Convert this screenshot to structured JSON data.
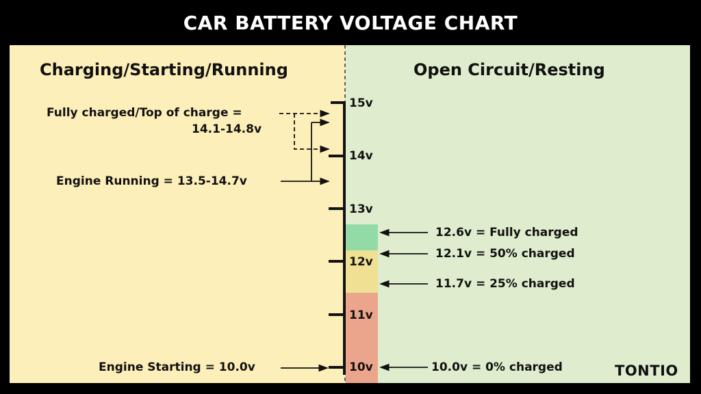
{
  "title": "CAR BATTERY VOLTAGE CHART",
  "left_heading": "Charging/Starting/Running",
  "right_heading": "Open Circuit/Resting",
  "scale": {
    "ticks": [
      "15v",
      "14v",
      "13v",
      "12v",
      "11v",
      "10v"
    ]
  },
  "zones": [
    {
      "label": "fully-charged",
      "from": 12.6,
      "to": 12.1,
      "color": "#93dba6"
    },
    {
      "label": "partial",
      "from": 12.1,
      "to": 11.3,
      "color": "#efe094"
    },
    {
      "label": "low",
      "from": 11.3,
      "to": 9.7,
      "color": "#eba58c"
    }
  ],
  "left_labels": {
    "fully_charged_line1": "Fully charged/Top of charge =",
    "fully_charged_line2": "14.1-14.8v",
    "engine_running": "Engine Running = 13.5-14.7v",
    "engine_starting": "Engine Starting = 10.0v"
  },
  "right_labels": {
    "r1": "12.6v = Fully charged",
    "r2": "12.1v = 50% charged",
    "r3": "11.7v = 25% charged",
    "r4": "10.0v = 0% charged"
  },
  "colors": {
    "left_bg": "#fdefb9",
    "right_bg": "#dfeccd",
    "frame": "#000000"
  },
  "logo": "TONTIO"
}
